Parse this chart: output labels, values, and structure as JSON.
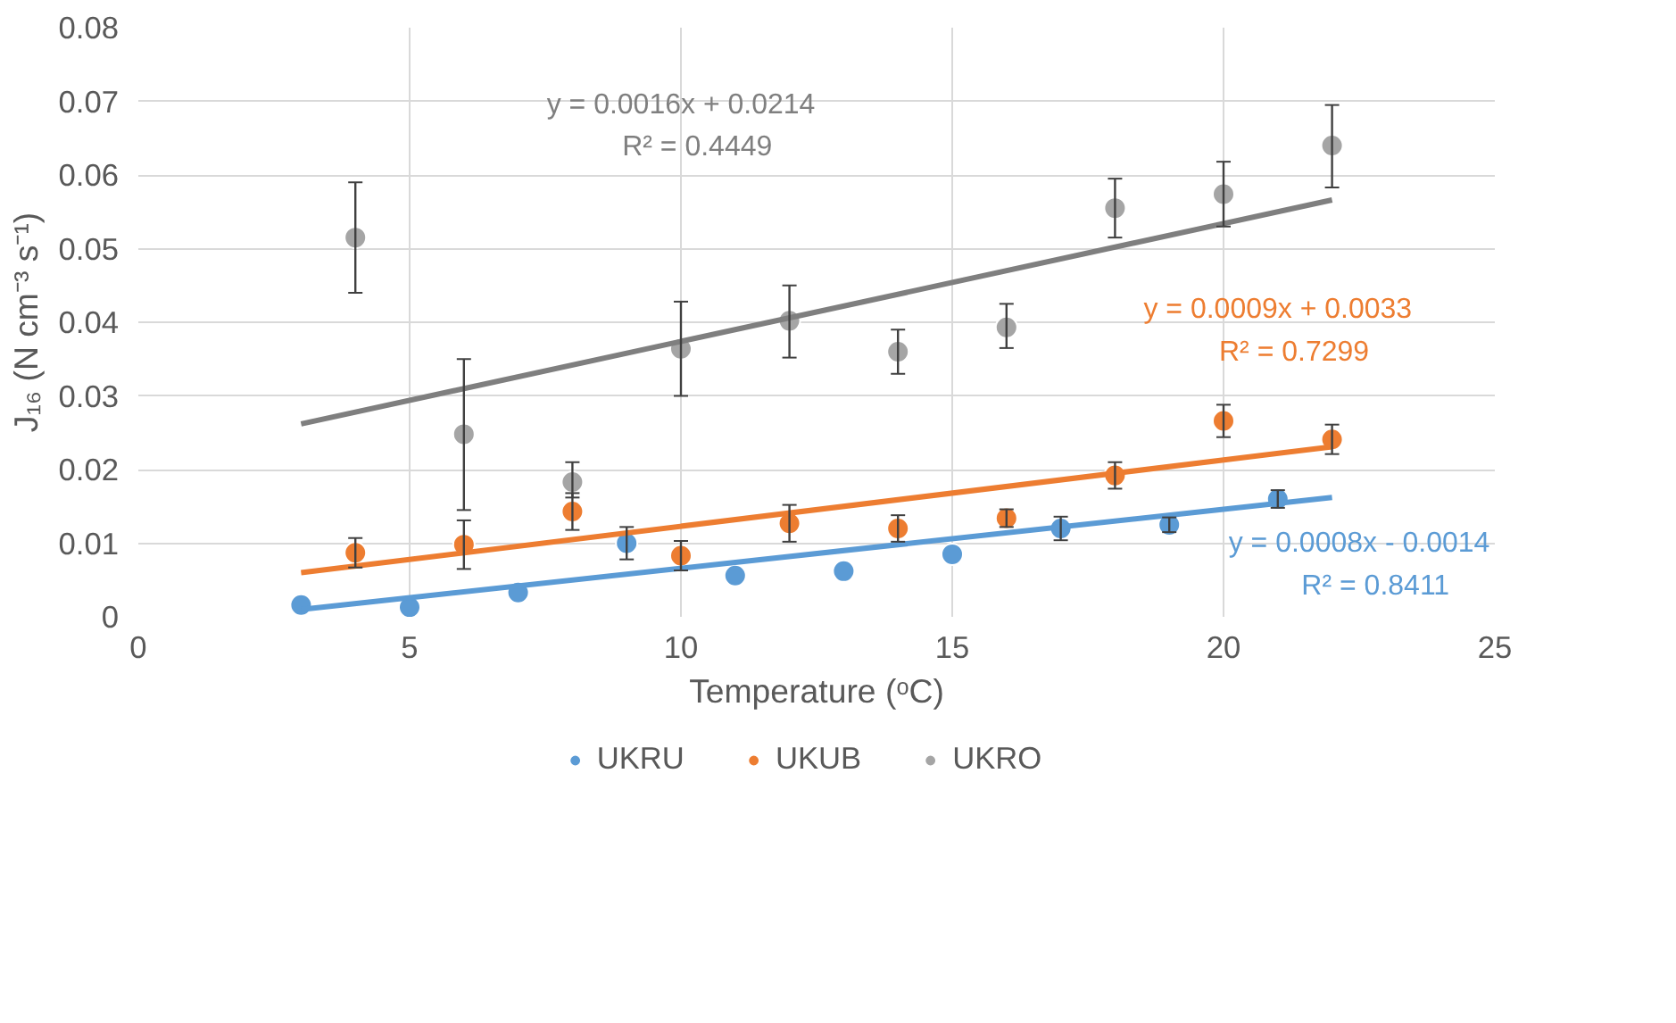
{
  "chart_data": {
    "type": "scatter",
    "xlabel": "Temperature (ᵒC)",
    "ylabel": "J₁₆ (N cm⁻³ s⁻¹)",
    "xlim": [
      0,
      25
    ],
    "ylim": [
      0,
      0.08
    ],
    "xticks": [
      0,
      5,
      10,
      15,
      20,
      25
    ],
    "yticks": [
      {
        "value": 0,
        "label": "0"
      },
      {
        "value": 0.01,
        "label": "0.01"
      },
      {
        "value": 0.02,
        "label": "0.02"
      },
      {
        "value": 0.03,
        "label": "0.03"
      },
      {
        "value": 0.04,
        "label": "0.04"
      },
      {
        "value": 0.05,
        "label": "0.05"
      },
      {
        "value": 0.06,
        "label": "0.06"
      },
      {
        "value": 0.07,
        "label": "0.07"
      },
      {
        "value": 0.08,
        "label": "0.08"
      }
    ],
    "grid": true,
    "legend": "bottom",
    "marker": "circle",
    "series": [
      {
        "name": "UKRU",
        "color": "#5b9bd5",
        "x": [
          3,
          5,
          7,
          9,
          11,
          13,
          15,
          17,
          19,
          21
        ],
        "values": [
          0.0016,
          0.0013,
          0.0033,
          0.01,
          0.0056,
          0.0062,
          0.0085,
          0.012,
          0.0125,
          0.016
        ],
        "errors": [
          null,
          null,
          null,
          0.0022,
          null,
          null,
          null,
          0.0016,
          0.001,
          0.0012
        ]
      },
      {
        "name": "UKUB",
        "color": "#ed7d31",
        "x": [
          4,
          6,
          8,
          10,
          12,
          14,
          16,
          18,
          20,
          22
        ],
        "values": [
          0.0087,
          0.0098,
          0.0143,
          0.0083,
          0.0127,
          0.012,
          0.0134,
          0.0192,
          0.0266,
          0.0241
        ],
        "errors": [
          0.002,
          0.0033,
          0.0025,
          0.002,
          0.0025,
          0.0018,
          0.0012,
          0.0018,
          0.0022,
          0.002
        ]
      },
      {
        "name": "UKRO",
        "color": "#a5a5a5",
        "x": [
          4,
          6,
          8,
          10,
          12,
          14,
          16,
          18,
          20,
          22
        ],
        "values": [
          0.0515,
          0.0248,
          0.0183,
          0.0364,
          0.0402,
          0.036,
          0.0393,
          0.0555,
          0.0574,
          0.064
        ],
        "errors": [
          [
            0.044,
            0.059
          ],
          [
            0.0145,
            0.035
          ],
          [
            0.0162,
            0.021
          ],
          [
            0.03,
            0.0428
          ],
          [
            0.0352,
            0.045
          ],
          [
            0.033,
            0.039
          ],
          [
            0.0365,
            0.0425
          ],
          [
            0.0515,
            0.0595
          ],
          [
            0.053,
            0.0618
          ],
          [
            0.0583,
            0.0695
          ]
        ]
      },
      {
        "type": "line",
        "marker": "none",
        "color": "#5b9bd5",
        "x": [
          3,
          22
        ],
        "values": [
          0.001,
          0.0162
        ]
      },
      {
        "type": "line",
        "marker": "none",
        "color": "#ed7d31",
        "x": [
          3,
          22
        ],
        "values": [
          0.006,
          0.0231
        ]
      },
      {
        "type": "line",
        "marker": "none",
        "color": "#7f7f7f",
        "x": [
          3,
          22
        ],
        "values": [
          0.0262,
          0.0566
        ]
      }
    ],
    "annotations": [
      "y = 0.0008x - 0.0014",
      "R² = 0.8411",
      "y = 0.0009x + 0.0033",
      "R² = 0.7299",
      "y = 0.0016x + 0.0214",
      "R² = 0.4449"
    ]
  }
}
